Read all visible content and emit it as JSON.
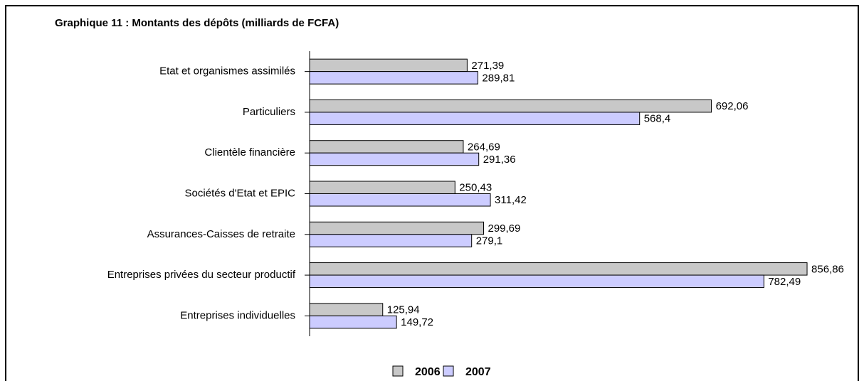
{
  "chart_data": {
    "type": "hbar",
    "title": "Graphique 11 : Montants des dépôts (milliards de FCFA)",
    "categories": [
      "Etat et organismes assimilés",
      "Particuliers",
      "Clientèle financière",
      "Sociétés d'Etat et EPIC",
      "Assurances-Caisses de retraite",
      "Entreprises privées du secteur productif",
      "Entreprises individuelles"
    ],
    "series": [
      {
        "name": "2006",
        "color": "#c8c8c8",
        "values": [
          271.39,
          692.06,
          264.69,
          250.43,
          299.69,
          856.86,
          125.94
        ],
        "value_labels": [
          "271,39",
          "692,06",
          "264,69",
          "250,43",
          "299,69",
          "856,86",
          "125,94"
        ]
      },
      {
        "name": "2007",
        "color": "#ccccff",
        "values": [
          289.81,
          568.4,
          291.36,
          311.42,
          279.1,
          782.49,
          149.72
        ],
        "value_labels": [
          "289,81",
          "568,4",
          "291,36",
          "311,42",
          "279,1",
          "782,49",
          "149,72"
        ]
      }
    ],
    "xlim": [
      0,
      900
    ],
    "legend": "bottom"
  }
}
